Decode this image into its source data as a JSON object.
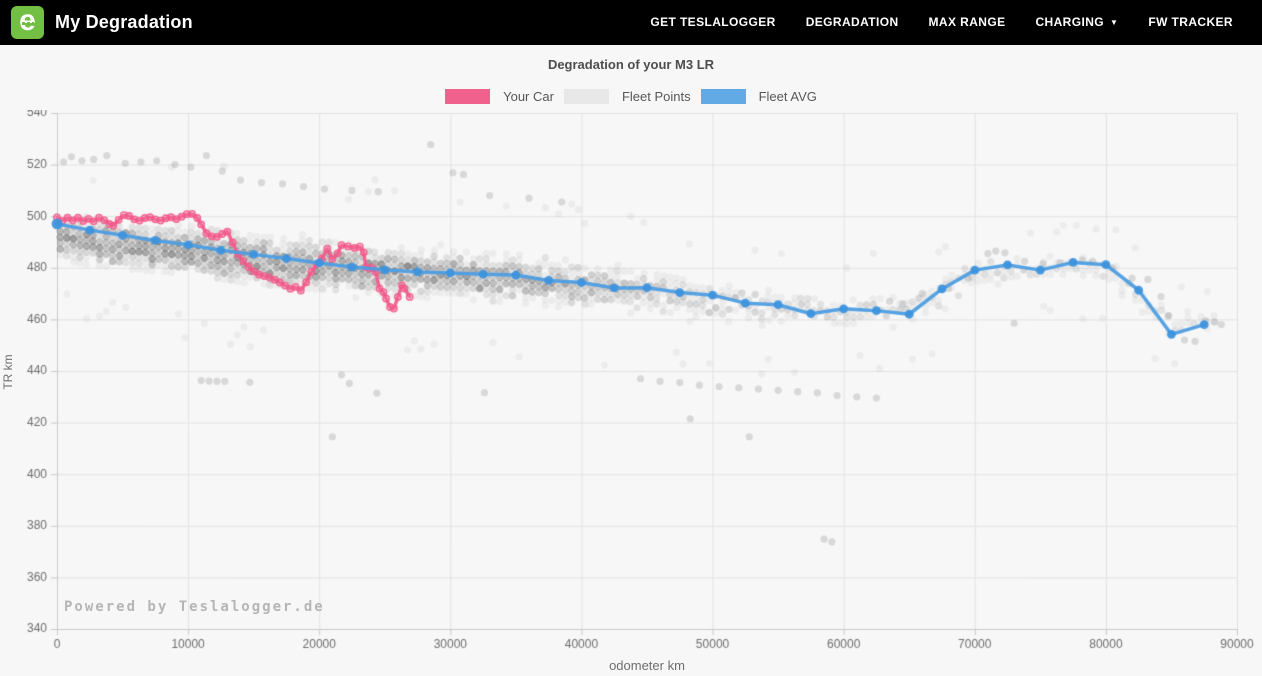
{
  "navbar": {
    "brand": "My Degradation",
    "logo_letter": "e",
    "items": [
      {
        "label": "GET TESLALOGGER"
      },
      {
        "label": "DEGRADATION"
      },
      {
        "label": "MAX RANGE"
      },
      {
        "label": "CHARGING",
        "caret": "▼"
      },
      {
        "label": "FW TRACKER"
      }
    ]
  },
  "chart": {
    "title": "Degradation of your M3 LR",
    "xlabel": "odometer km",
    "ylabel": "TR km",
    "watermark": "Powered by Teslalogger.de",
    "legend": [
      {
        "label": "Your Car",
        "color": "#f0618e"
      },
      {
        "label": "Fleet Points",
        "color": "#e8e8e8"
      },
      {
        "label": "Fleet AVG",
        "color": "#61aae6"
      }
    ]
  },
  "chart_data": {
    "type": "scatter",
    "title": "Degradation of your M3 LR",
    "xlabel": "odometer km",
    "ylabel": "TR km",
    "xlim": [
      0,
      90000
    ],
    "ylim": [
      340,
      540
    ],
    "xticks": [
      0,
      10000,
      20000,
      30000,
      40000,
      50000,
      60000,
      70000,
      80000,
      90000
    ],
    "yticks": [
      340,
      360,
      380,
      400,
      420,
      440,
      460,
      480,
      500,
      520,
      540
    ],
    "grid": true,
    "legend_position": "top",
    "colors": {
      "your_car": "#f2598a",
      "fleet_avg_line": "#4d9de2",
      "fleet_avg_marker": "#3e93dd",
      "fleet_point": "rgba(60,60,60,0.055)",
      "outlier_point": "rgba(110,110,110,0.22)",
      "gridline": "#e2e2e2",
      "axis": "#c8c8c8",
      "tick_text": "#6e6e6e"
    },
    "series": [
      {
        "name": "Your Car",
        "style": "line+open-markers",
        "points": [
          [
            0,
            499.5
          ],
          [
            400,
            498.2
          ],
          [
            800,
            499.4
          ],
          [
            1200,
            498.4
          ],
          [
            1600,
            499.4
          ],
          [
            2000,
            498.1
          ],
          [
            2400,
            499.0
          ],
          [
            2800,
            498.0
          ],
          [
            3200,
            499.4
          ],
          [
            3600,
            498.5
          ],
          [
            4000,
            497.0
          ],
          [
            4300,
            496.3
          ],
          [
            4700,
            498.6
          ],
          [
            5100,
            500.4
          ],
          [
            5500,
            500.1
          ],
          [
            5900,
            498.8
          ],
          [
            6300,
            498.3
          ],
          [
            6700,
            499.3
          ],
          [
            7100,
            499.6
          ],
          [
            7500,
            498.8
          ],
          [
            7900,
            498.3
          ],
          [
            8300,
            499.2
          ],
          [
            8700,
            499.6
          ],
          [
            9100,
            498.9
          ],
          [
            9500,
            499.8
          ],
          [
            9900,
            500.8
          ],
          [
            10300,
            500.9
          ],
          [
            10700,
            499.3
          ],
          [
            11000,
            496.8
          ],
          [
            11400,
            493.4
          ],
          [
            11800,
            492.2
          ],
          [
            12200,
            492.0
          ],
          [
            12600,
            493.1
          ],
          [
            13000,
            494.0
          ],
          [
            13400,
            489.8
          ],
          [
            13800,
            485.2
          ],
          [
            14200,
            482.6
          ],
          [
            14600,
            480.4
          ],
          [
            15000,
            478.6
          ],
          [
            15400,
            477.4
          ],
          [
            15800,
            476.8
          ],
          [
            16200,
            476.3
          ],
          [
            16600,
            475.4
          ],
          [
            17000,
            474.3
          ],
          [
            17400,
            473.1
          ],
          [
            17800,
            471.9
          ],
          [
            18200,
            472.6
          ],
          [
            18600,
            471.2
          ],
          [
            19000,
            474.4
          ],
          [
            19400,
            478.6
          ],
          [
            19800,
            481.4
          ],
          [
            20200,
            483.6
          ],
          [
            20600,
            487.4
          ],
          [
            21000,
            483.4
          ],
          [
            21400,
            485.6
          ],
          [
            21700,
            488.8
          ],
          [
            22200,
            488.3
          ],
          [
            22700,
            487.7
          ],
          [
            23100,
            488.2
          ],
          [
            23400,
            486.0
          ],
          [
            23550,
            480.3
          ],
          [
            23800,
            479.7
          ],
          [
            24000,
            480.2
          ],
          [
            24300,
            478.4
          ],
          [
            24600,
            472.0
          ],
          [
            24900,
            470.6
          ],
          [
            25100,
            468.1
          ],
          [
            25400,
            464.8
          ],
          [
            25700,
            464.2
          ],
          [
            26000,
            468.7
          ],
          [
            26300,
            473.2
          ],
          [
            26500,
            472.0
          ],
          [
            26900,
            468.7
          ]
        ]
      },
      {
        "name": "Fleet AVG",
        "style": "line+filled-markers",
        "points": [
          [
            0,
            497.0
          ],
          [
            2500,
            494.6
          ],
          [
            5000,
            492.6
          ],
          [
            7500,
            490.6
          ],
          [
            10000,
            488.9
          ],
          [
            12500,
            486.8
          ],
          [
            15000,
            485.2
          ],
          [
            17500,
            483.6
          ],
          [
            20000,
            481.9
          ],
          [
            22500,
            480.3
          ],
          [
            25000,
            479.2
          ],
          [
            27500,
            478.4
          ],
          [
            30000,
            478.0
          ],
          [
            32500,
            477.5
          ],
          [
            35000,
            477.2
          ],
          [
            37500,
            475.1
          ],
          [
            40000,
            474.3
          ],
          [
            42500,
            472.2
          ],
          [
            45000,
            472.3
          ],
          [
            47500,
            470.4
          ],
          [
            50000,
            469.4
          ],
          [
            52500,
            466.3
          ],
          [
            55000,
            465.7
          ],
          [
            57500,
            462.2
          ],
          [
            60000,
            464.1
          ],
          [
            62500,
            463.4
          ],
          [
            65000,
            462.0
          ],
          [
            67500,
            471.8
          ],
          [
            70000,
            479.1
          ],
          [
            72500,
            481.1
          ],
          [
            75000,
            479.1
          ],
          [
            77500,
            482.1
          ],
          [
            80000,
            481.2
          ],
          [
            82500,
            471.3
          ],
          [
            85000,
            454.2
          ],
          [
            87500,
            458.0
          ]
        ]
      }
    ],
    "fleet_cloud": {
      "description": "dense semi-transparent fleet scatter, columns every ~500 km, beaded vertical stacks",
      "seed": 1337,
      "column_step_km": 500,
      "bead_step_tr": 2.3,
      "point_radius": 3.6,
      "anchors": [
        {
          "odo": 0,
          "center": 492,
          "spread": 10,
          "count": 30
        },
        {
          "odo": 5000,
          "center": 489,
          "spread": 11,
          "count": 34
        },
        {
          "odo": 10000,
          "center": 487,
          "spread": 12,
          "count": 36
        },
        {
          "odo": 15000,
          "center": 483,
          "spread": 12,
          "count": 36
        },
        {
          "odo": 20000,
          "center": 481,
          "spread": 12,
          "count": 34
        },
        {
          "odo": 25000,
          "center": 479,
          "spread": 12,
          "count": 32
        },
        {
          "odo": 30000,
          "center": 477,
          "spread": 11,
          "count": 30
        },
        {
          "odo": 35000,
          "center": 476,
          "spread": 11,
          "count": 26
        },
        {
          "odo": 40000,
          "center": 473,
          "spread": 11,
          "count": 20
        },
        {
          "odo": 45000,
          "center": 471,
          "spread": 10,
          "count": 13
        },
        {
          "odo": 50000,
          "center": 467,
          "spread": 9,
          "count": 8
        },
        {
          "odo": 55000,
          "center": 464,
          "spread": 9,
          "count": 6
        },
        {
          "odo": 60000,
          "center": 463,
          "spread": 8,
          "count": 5
        },
        {
          "odo": 65000,
          "center": 464,
          "spread": 8,
          "count": 4
        },
        {
          "odo": 70000,
          "center": 477,
          "spread": 7,
          "count": 4
        },
        {
          "odo": 75000,
          "center": 480,
          "spread": 6,
          "count": 3
        },
        {
          "odo": 80000,
          "center": 479,
          "spread": 7,
          "count": 3
        },
        {
          "odo": 85000,
          "center": 458,
          "spread": 6,
          "count": 3
        },
        {
          "odo": 88000,
          "center": 459,
          "spread": 5,
          "count": 2
        }
      ],
      "outliers": [
        [
          500,
          521
        ],
        [
          1100,
          523
        ],
        [
          1900,
          521.5
        ],
        [
          2800,
          522
        ],
        [
          3800,
          523.5
        ],
        [
          5200,
          520.5
        ],
        [
          6400,
          521
        ],
        [
          7600,
          521.5
        ],
        [
          9000,
          520
        ],
        [
          10200,
          519
        ],
        [
          11400,
          523.5
        ],
        [
          12600,
          517.5
        ],
        [
          14000,
          514
        ],
        [
          15600,
          513
        ],
        [
          17200,
          512.5
        ],
        [
          18800,
          511.5
        ],
        [
          20400,
          510.5
        ],
        [
          22500,
          510
        ],
        [
          24500,
          509.5
        ],
        [
          28500,
          527.8
        ],
        [
          30200,
          516.8
        ],
        [
          31000,
          516.2
        ],
        [
          33000,
          508
        ],
        [
          36000,
          507
        ],
        [
          38500,
          505.5
        ],
        [
          11000,
          436.3
        ],
        [
          11600,
          436.1
        ],
        [
          12200,
          436
        ],
        [
          12800,
          436
        ],
        [
          14700,
          435.6
        ],
        [
          21700,
          438.5
        ],
        [
          22300,
          435.2
        ],
        [
          24400,
          431.4
        ],
        [
          32600,
          431.6
        ],
        [
          21000,
          414.5
        ],
        [
          48300,
          421.5
        ],
        [
          52800,
          414.5
        ],
        [
          58500,
          374.8
        ],
        [
          59100,
          373.8
        ],
        [
          44500,
          437
        ],
        [
          46000,
          436
        ],
        [
          47500,
          435.5
        ],
        [
          49000,
          434.5
        ],
        [
          50500,
          434
        ],
        [
          52000,
          433.5
        ],
        [
          53500,
          433
        ],
        [
          55000,
          432.5
        ],
        [
          56500,
          432
        ],
        [
          58000,
          431.5
        ],
        [
          59500,
          430.5
        ],
        [
          61000,
          430
        ],
        [
          62500,
          429.5
        ],
        [
          63500,
          467
        ],
        [
          64500,
          466
        ],
        [
          66000,
          470
        ],
        [
          68000,
          472
        ],
        [
          69500,
          476
        ],
        [
          71000,
          485.5
        ],
        [
          71600,
          486.5
        ],
        [
          72300,
          485.8
        ],
        [
          73000,
          458.5
        ],
        [
          73800,
          482.5
        ],
        [
          75200,
          481.5
        ],
        [
          76500,
          482
        ],
        [
          78200,
          483
        ],
        [
          79000,
          482.5
        ],
        [
          80500,
          480
        ],
        [
          82000,
          476
        ],
        [
          83200,
          475.5
        ],
        [
          84200,
          468.8
        ],
        [
          84800,
          461.5
        ],
        [
          86000,
          452
        ],
        [
          86800,
          451.5
        ],
        [
          87600,
          459.5
        ],
        [
          88300,
          459
        ],
        [
          88800,
          458
        ]
      ]
    }
  }
}
